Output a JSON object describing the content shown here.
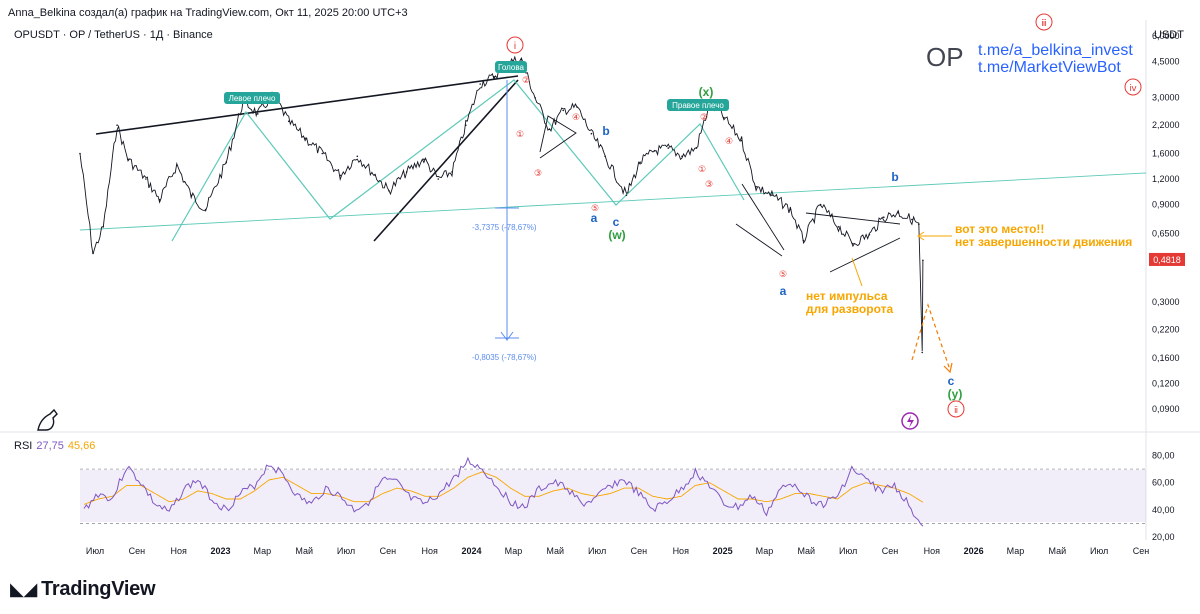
{
  "header": {
    "attribution": "Anna_Belkina создал(а) график на TradingView.com, Окт 11, 2025 20:00 UTC+3",
    "symbol_line": "OPUSDT · OP / TetherUS · 1Д · Binance",
    "currency": "USDT"
  },
  "overlay": {
    "ticker": "OP",
    "link1": "t.me/a_belkina_invest",
    "link2": "t.me/MarketViewBot"
  },
  "brand": {
    "logo_text": "TradingView"
  },
  "colors": {
    "candle": "#131722",
    "teal": "#5cc9b8",
    "red_wave": "#e53935",
    "blue_wave": "#1e63c4",
    "green_wave": "#2e9e3e",
    "orange": "#f7a600",
    "rsi": "#7e57c2",
    "rsi_ma": "#f7a600",
    "fib": "#5b8def",
    "price_tag": "#e53935",
    "bubble": "#26a69a"
  },
  "chart_data": [
    {
      "type": "line",
      "title": "OPUSDT · OP / TetherUS · 1Д · Binance",
      "xlabel": "",
      "ylabel": "USDT",
      "y_scale": "log",
      "ylim": [
        0.075,
        7.2
      ],
      "x_range": [
        "2022-06",
        "2026-09"
      ],
      "x_tick_labels": [
        "Июл",
        "Сен",
        "Ноя",
        "2023",
        "Мар",
        "Май",
        "Июл",
        "Сен",
        "Ноя",
        "2024",
        "Мар",
        "Май",
        "Июл",
        "Сен",
        "Ноя",
        "2025",
        "Мар",
        "Май",
        "Июл",
        "Сен",
        "Ноя",
        "2026",
        "Мар",
        "Май",
        "Июл",
        "Сен"
      ],
      "y_tick_labels": [
        "6,0000",
        "4,5000",
        "3,0000",
        "2,2000",
        "1,6000",
        "1,2000",
        "0,9000",
        "0,6500",
        "0,3000",
        "0,2200",
        "0,1600",
        "0,1200",
        "0,0900"
      ],
      "y_tick_values": [
        6.0,
        4.5,
        3.0,
        2.2,
        1.6,
        1.2,
        0.9,
        0.65,
        0.3,
        0.22,
        0.16,
        0.12,
        0.09
      ],
      "last_price_label": "0,4818",
      "last_price": 0.4818,
      "series": [
        {
          "name": "OPUSDT close (approx.)",
          "x": [
            "2022-06-01",
            "2022-06-20",
            "2022-07-05",
            "2022-07-25",
            "2022-08-10",
            "2022-09-05",
            "2022-09-25",
            "2022-10-20",
            "2022-11-10",
            "2022-12-01",
            "2022-12-31",
            "2023-01-25",
            "2023-02-15",
            "2023-03-10",
            "2023-04-01",
            "2023-04-25",
            "2023-05-20",
            "2023-06-15",
            "2023-07-10",
            "2023-08-05",
            "2023-08-25",
            "2023-09-20",
            "2023-10-15",
            "2023-11-05",
            "2023-11-25",
            "2023-12-15",
            "2024-01-05",
            "2024-01-25",
            "2024-02-15",
            "2024-03-05",
            "2024-03-25",
            "2024-04-15",
            "2024-05-05",
            "2024-05-25",
            "2024-06-15",
            "2024-07-05",
            "2024-08-05",
            "2024-08-25",
            "2024-09-15",
            "2024-10-05",
            "2024-10-25",
            "2024-11-15",
            "2024-12-05",
            "2024-12-25",
            "2025-01-20",
            "2025-02-10",
            "2025-03-05",
            "2025-04-01",
            "2025-04-20",
            "2025-05-15",
            "2025-06-10",
            "2025-07-01",
            "2025-07-25",
            "2025-08-15",
            "2025-09-05",
            "2025-09-25",
            "2025-10-05",
            "2025-10-10",
            "2025-10-11"
          ],
          "values": [
            1.6,
            0.52,
            0.7,
            2.2,
            1.5,
            1.2,
            0.95,
            1.4,
            1.0,
            0.85,
            1.45,
            2.9,
            2.5,
            3.1,
            2.3,
            1.9,
            1.6,
            1.25,
            1.55,
            1.25,
            1.05,
            1.3,
            1.5,
            1.2,
            1.3,
            2.2,
            3.5,
            3.8,
            4.5,
            4.6,
            3.0,
            2.1,
            2.6,
            2.7,
            2.0,
            1.55,
            1.0,
            1.45,
            1.65,
            1.7,
            1.55,
            1.7,
            2.85,
            2.4,
            1.85,
            1.1,
            1.0,
            0.85,
            0.6,
            0.9,
            0.7,
            0.58,
            0.64,
            0.78,
            0.82,
            0.76,
            0.72,
            0.17,
            0.48
          ]
        }
      ],
      "wave_labels": [
        "①",
        "②",
        "③",
        "④",
        "⑤",
        "(x)",
        "(w)",
        "(y)",
        "a",
        "b",
        "c",
        "ⅰ",
        "ⅱ",
        "ⅲ",
        "ⅳ"
      ],
      "pattern_labels": [
        "Левое плечо",
        "Голова",
        "Правое плечо"
      ],
      "fib_labels": [
        "-3,7375 (-78,67%)",
        "-0,8035 (-78,67%)"
      ],
      "annotations": [
        "вот это место!!",
        "нет завершенности движения",
        "нет импульса",
        "для разворота"
      ]
    },
    {
      "type": "line",
      "title": "RSI",
      "ylim": [
        20,
        90
      ],
      "y_tick_labels": [
        "80,00",
        "60,00",
        "40,00",
        "20,00"
      ],
      "y_tick_values": [
        80,
        60,
        40,
        20
      ],
      "band": [
        30,
        70
      ],
      "current": {
        "rsi": "27,75",
        "ma": "45,66"
      },
      "series": [
        {
          "name": "RSI",
          "values": [
            40,
            52,
            48,
            72,
            60,
            44,
            38,
            55,
            62,
            48,
            40,
            52,
            58,
            74,
            66,
            50,
            44,
            56,
            50,
            40,
            46,
            62,
            60,
            48,
            44,
            52,
            63,
            76,
            70,
            58,
            46,
            42,
            55,
            60,
            56,
            44,
            48,
            58,
            62,
            52,
            40,
            46,
            55,
            68,
            58,
            44,
            42,
            50,
            38,
            55,
            60,
            48,
            44,
            50,
            70,
            62,
            54,
            58,
            44,
            28
          ]
        },
        {
          "name": "RSI MA",
          "values": [
            44,
            48,
            50,
            58,
            58,
            52,
            46,
            48,
            54,
            52,
            48,
            48,
            54,
            62,
            64,
            58,
            52,
            52,
            50,
            46,
            46,
            52,
            56,
            54,
            50,
            50,
            56,
            64,
            68,
            64,
            56,
            50,
            50,
            54,
            56,
            52,
            50,
            52,
            56,
            56,
            50,
            48,
            50,
            58,
            60,
            54,
            48,
            48,
            46,
            48,
            52,
            52,
            50,
            48,
            56,
            60,
            58,
            56,
            52,
            45.66
          ]
        }
      ]
    }
  ]
}
